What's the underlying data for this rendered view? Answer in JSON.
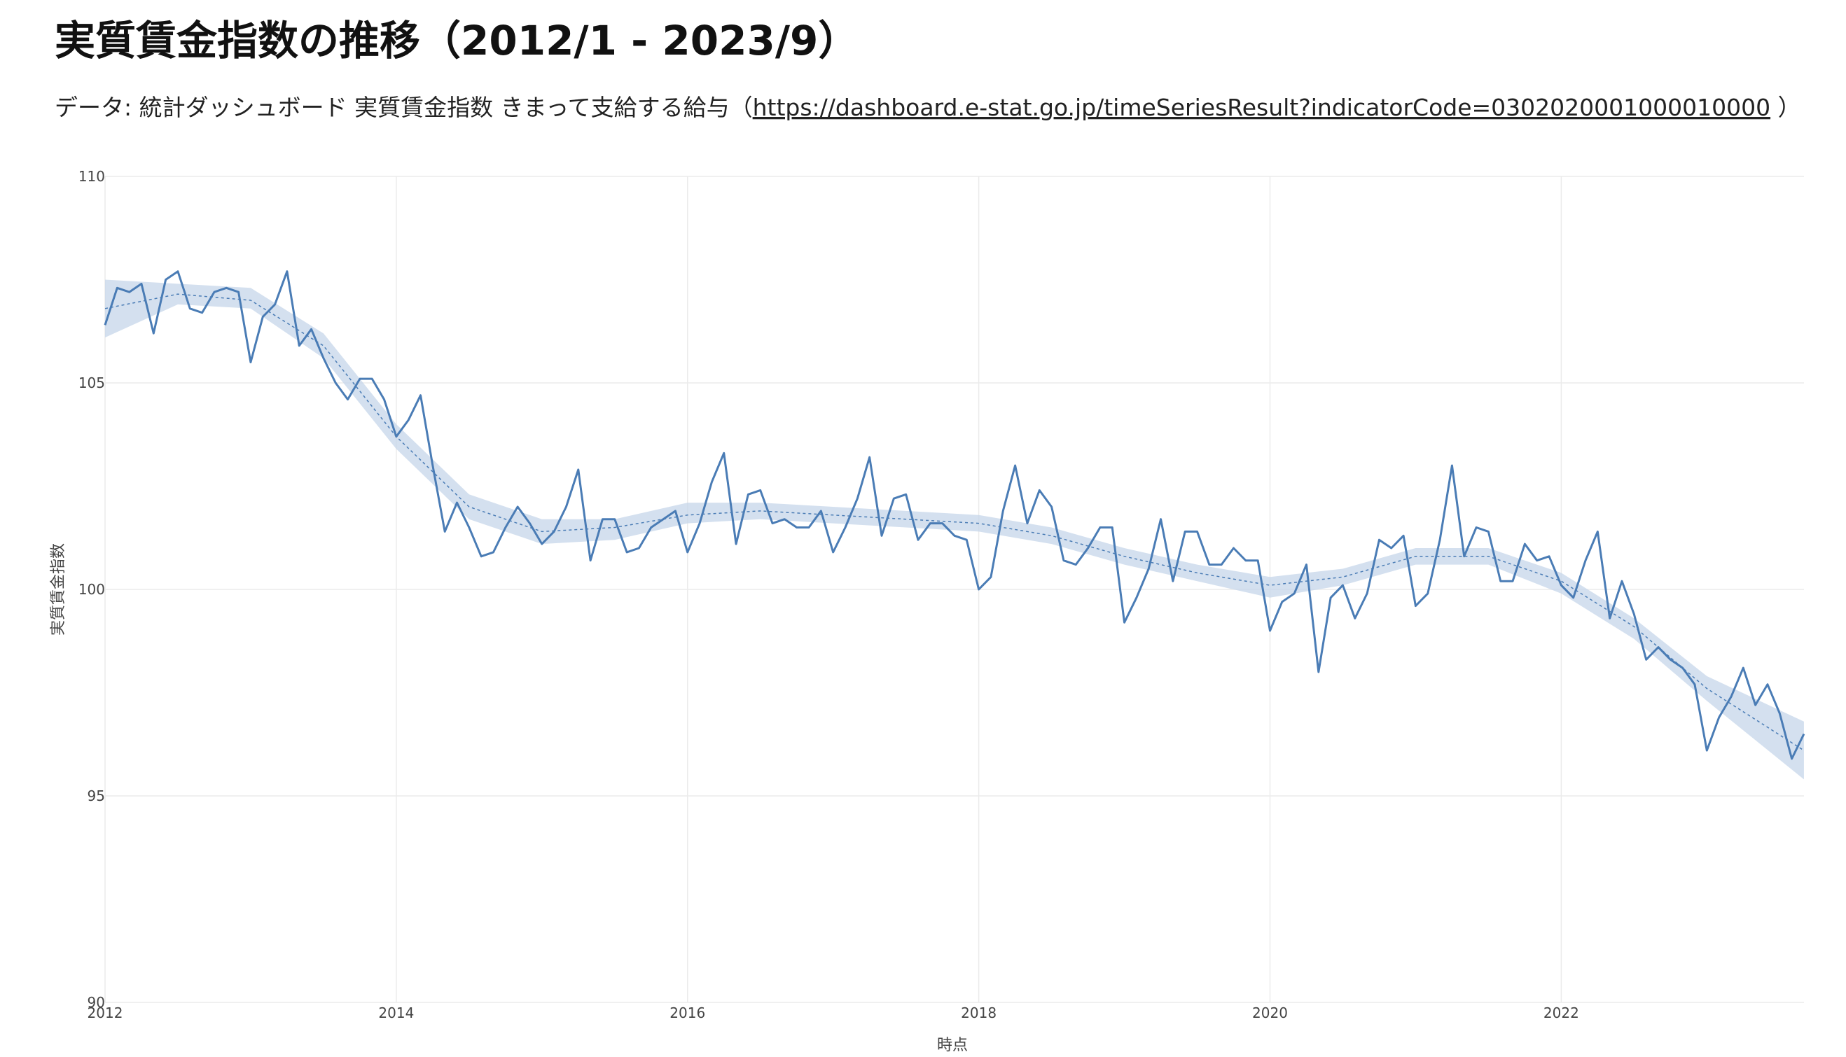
{
  "chart_data": {
    "type": "line",
    "title": "実質賃金指数の推移（2012/1 - 2023/9）",
    "subtitle": {
      "text": "データ: 統計ダッシュボード 実質賃金指数 きまって支給する給与（",
      "url": "https://dashboard.e-stat.go.jp/timeSeriesResult?indicatorCode=0302020001000010000",
      "end": " ）"
    },
    "xlabel": "時点",
    "ylabel": "実質賃金指数",
    "xlim": [
      2012,
      2023.667
    ],
    "xticks": [
      2012,
      2014,
      2016,
      2018,
      2020,
      2022
    ],
    "ylim": [
      90,
      110
    ],
    "yticks": [
      90,
      95,
      100,
      105,
      110
    ],
    "grid": true,
    "x": [
      "2012-01",
      "2012-02",
      "2012-03",
      "2012-04",
      "2012-05",
      "2012-06",
      "2012-07",
      "2012-08",
      "2012-09",
      "2012-10",
      "2012-11",
      "2012-12",
      "2013-01",
      "2013-02",
      "2013-03",
      "2013-04",
      "2013-05",
      "2013-06",
      "2013-07",
      "2013-08",
      "2013-09",
      "2013-10",
      "2013-11",
      "2013-12",
      "2014-01",
      "2014-02",
      "2014-03",
      "2014-04",
      "2014-05",
      "2014-06",
      "2014-07",
      "2014-08",
      "2014-09",
      "2014-10",
      "2014-11",
      "2014-12",
      "2015-01",
      "2015-02",
      "2015-03",
      "2015-04",
      "2015-05",
      "2015-06",
      "2015-07",
      "2015-08",
      "2015-09",
      "2015-10",
      "2015-11",
      "2015-12",
      "2016-01",
      "2016-02",
      "2016-03",
      "2016-04",
      "2016-05",
      "2016-06",
      "2016-07",
      "2016-08",
      "2016-09",
      "2016-10",
      "2016-11",
      "2016-12",
      "2017-01",
      "2017-02",
      "2017-03",
      "2017-04",
      "2017-05",
      "2017-06",
      "2017-07",
      "2017-08",
      "2017-09",
      "2017-10",
      "2017-11",
      "2017-12",
      "2018-01",
      "2018-02",
      "2018-03",
      "2018-04",
      "2018-05",
      "2018-06",
      "2018-07",
      "2018-08",
      "2018-09",
      "2018-10",
      "2018-11",
      "2018-12",
      "2019-01",
      "2019-02",
      "2019-03",
      "2019-04",
      "2019-05",
      "2019-06",
      "2019-07",
      "2019-08",
      "2019-09",
      "2019-10",
      "2019-11",
      "2019-12",
      "2020-01",
      "2020-02",
      "2020-03",
      "2020-04",
      "2020-05",
      "2020-06",
      "2020-07",
      "2020-08",
      "2020-09",
      "2020-10",
      "2020-11",
      "2020-12",
      "2021-01",
      "2021-02",
      "2021-03",
      "2021-04",
      "2021-05",
      "2021-06",
      "2021-07",
      "2021-08",
      "2021-09",
      "2021-10",
      "2021-11",
      "2021-12",
      "2022-01",
      "2022-02",
      "2022-03",
      "2022-04",
      "2022-05",
      "2022-06",
      "2022-07",
      "2022-08",
      "2022-09",
      "2022-10",
      "2022-11",
      "2022-12",
      "2023-01",
      "2023-02",
      "2023-03",
      "2023-04",
      "2023-05",
      "2023-06",
      "2023-07",
      "2023-08",
      "2023-09"
    ],
    "series": [
      {
        "color": "#4a7cb5",
        "values": [
          106.4,
          107.3,
          107.2,
          107.4,
          106.2,
          107.5,
          107.7,
          106.8,
          106.7,
          107.2,
          107.3,
          107.2,
          105.5,
          106.6,
          106.9,
          107.7,
          105.9,
          106.3,
          105.6,
          105.0,
          104.6,
          105.1,
          105.1,
          104.6,
          103.7,
          104.1,
          104.7,
          103.0,
          101.4,
          102.1,
          101.5,
          100.8,
          100.9,
          101.5,
          102.0,
          101.6,
          101.1,
          101.4,
          102.0,
          102.9,
          100.7,
          101.7,
          101.7,
          100.9,
          101.0,
          101.5,
          101.7,
          101.9,
          100.9,
          101.6,
          102.6,
          103.3,
          101.1,
          102.3,
          102.4,
          101.6,
          101.7,
          101.5,
          101.5,
          101.9,
          100.9,
          101.5,
          102.2,
          103.2,
          101.3,
          102.2,
          102.3,
          101.2,
          101.6,
          101.6,
          101.3,
          101.2,
          100.0,
          100.3,
          101.9,
          103.0,
          101.6,
          102.4,
          102.0,
          100.7,
          100.6,
          101.0,
          101.5,
          101.5,
          99.2,
          99.8,
          100.5,
          101.7,
          100.2,
          101.4,
          101.4,
          100.6,
          100.6,
          101.0,
          100.7,
          100.7,
          99.0,
          99.7,
          99.9,
          100.6,
          98.0,
          99.8,
          100.1,
          99.3,
          99.9,
          101.2,
          101.0,
          101.3,
          99.6,
          99.9,
          101.2,
          103.0,
          100.8,
          101.5,
          101.4,
          100.2,
          100.2,
          101.1,
          100.7,
          100.8,
          100.1,
          99.8,
          100.7,
          101.4,
          99.3,
          100.2,
          99.4,
          98.3,
          98.6,
          98.3,
          98.1,
          97.7,
          96.1,
          96.9,
          97.4,
          98.1,
          97.2,
          97.7,
          97.0,
          95.9,
          96.5
        ]
      }
    ],
    "trend": {
      "color": "#4a7cb5",
      "band_color": "#c6d5ea",
      "x": [
        "2012-01",
        "2012-07",
        "2013-01",
        "2013-07",
        "2014-01",
        "2014-07",
        "2015-01",
        "2015-07",
        "2016-01",
        "2016-07",
        "2017-01",
        "2017-07",
        "2018-01",
        "2018-07",
        "2019-01",
        "2019-07",
        "2020-01",
        "2020-07",
        "2021-01",
        "2021-07",
        "2022-01",
        "2022-07",
        "2023-01",
        "2023-09"
      ],
      "values": [
        106.8,
        107.15,
        107.0,
        105.9,
        103.7,
        102.0,
        101.4,
        101.5,
        101.8,
        101.9,
        101.8,
        101.7,
        101.6,
        101.3,
        100.8,
        100.4,
        100.1,
        100.3,
        100.8,
        100.8,
        100.2,
        99.1,
        97.6,
        96.1
      ],
      "lower": [
        106.1,
        106.9,
        106.8,
        105.6,
        103.4,
        101.7,
        101.1,
        101.2,
        101.6,
        101.7,
        101.6,
        101.5,
        101.4,
        101.1,
        100.6,
        100.2,
        99.8,
        100.1,
        100.6,
        100.6,
        99.9,
        98.8,
        97.3,
        95.4
      ],
      "upper": [
        107.5,
        107.4,
        107.3,
        106.2,
        104.0,
        102.3,
        101.7,
        101.7,
        102.1,
        102.1,
        102.0,
        101.9,
        101.8,
        101.5,
        101.0,
        100.6,
        100.3,
        100.5,
        101.0,
        101.0,
        100.4,
        99.3,
        97.9,
        96.8
      ]
    }
  }
}
